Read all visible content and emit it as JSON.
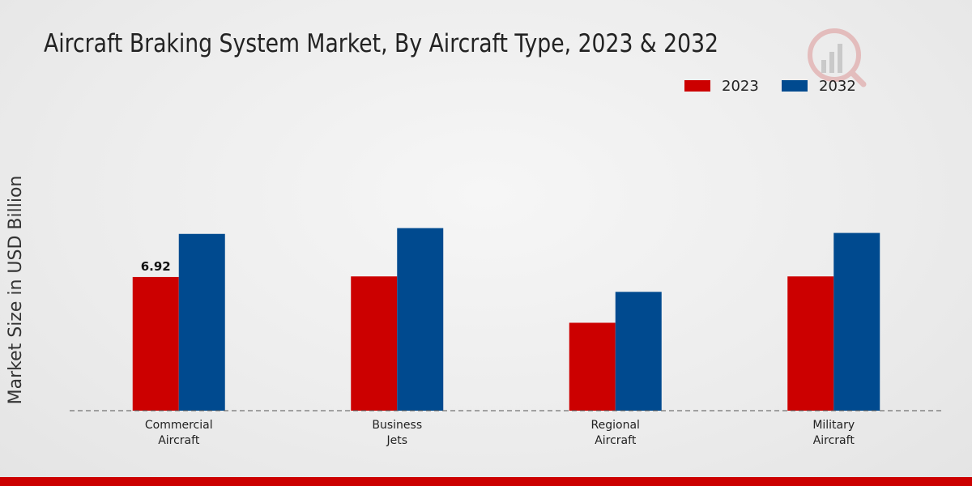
{
  "chart_data": {
    "type": "bar",
    "title": "Aircraft Braking System Market, By Aircraft Type, 2023 & 2032",
    "xlabel": "",
    "ylabel": "Market Size in USD Billion",
    "categories": [
      [
        "Commercial",
        "Aircraft"
      ],
      [
        "Business",
        "Jets"
      ],
      [
        "Regional",
        "Aircraft"
      ],
      [
        "Military",
        "Aircraft"
      ]
    ],
    "series": [
      {
        "name": "2023",
        "color": "#cc0000",
        "values": [
          6.92,
          6.95,
          4.55,
          6.95
        ]
      },
      {
        "name": "2032",
        "color": "#004a8f",
        "values": [
          9.15,
          9.45,
          6.15,
          9.2
        ]
      }
    ],
    "data_labels": [
      {
        "series": 0,
        "index": 0,
        "text": "6.92"
      }
    ],
    "ylim": [
      0,
      20
    ],
    "legend": "top-right",
    "grid": false
  }
}
